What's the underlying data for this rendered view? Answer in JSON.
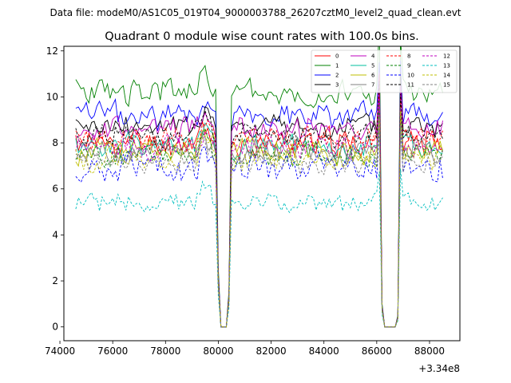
{
  "suptitle": "Data file: modeM0/AS1C05_019T04_9000003788_26207cztM0_level2_quad_clean.evt",
  "chart_data": {
    "type": "line",
    "title": "Quadrant 0 module wise count rates with 100.0s bins.",
    "xlabel": "",
    "ylabel": "",
    "x_offset_label": "+3.34e8",
    "xlim": [
      74150,
      89150
    ],
    "ylim": [
      -0.6,
      12.2
    ],
    "xticks": [
      74000,
      76000,
      78000,
      80000,
      82000,
      84000,
      86000,
      88000
    ],
    "yticks": [
      0,
      2,
      4,
      6,
      8,
      10,
      12
    ],
    "grid": false,
    "legend_position": "top-right",
    "legend_columns": 4,
    "x_start": 74600,
    "bin_width": 100,
    "segments": [
      {
        "from": 74600,
        "to": 79900,
        "type": "data"
      },
      {
        "from": 80000,
        "to": 80400,
        "type": "zero"
      },
      {
        "from": 80500,
        "to": 86100,
        "type": "data"
      },
      {
        "from": 86200,
        "to": 86800,
        "type": "zero"
      },
      {
        "from": 86900,
        "to": 88500,
        "type": "data"
      }
    ],
    "special_points": [
      {
        "x": 79900,
        "factor": 0.6
      },
      {
        "x": 80000,
        "factor": 0.25
      },
      {
        "x": 80400,
        "factor": 0.15
      },
      {
        "x": 80500,
        "factor": 0.6
      },
      {
        "x": 86100,
        "factor": 0.7
      },
      {
        "x": 86200,
        "factor": 0.1
      },
      {
        "x": 86800,
        "factor": 0.05
      },
      {
        "x": 86900,
        "factor": 0.7
      },
      {
        "x": 88400,
        "factor": 0.7
      },
      {
        "x": 88500,
        "factor": 0.16
      }
    ],
    "bump": {
      "from": 79000,
      "to": 79900,
      "peak_x": 79500,
      "amount": 0.8
    },
    "spikes": [
      {
        "x": 86100,
        "factor": 1.25
      },
      {
        "x": 86900,
        "factor": 1.22
      }
    ],
    "series": [
      {
        "name": "0",
        "color": "#ff0000",
        "dash": "solid",
        "mean": 8.0,
        "amplitude": 0.35,
        "seed": 11
      },
      {
        "name": "1",
        "color": "#008000",
        "dash": "solid",
        "mean": 10.2,
        "amplitude": 0.35,
        "seed": 23
      },
      {
        "name": "2",
        "color": "#0000ff",
        "dash": "solid",
        "mean": 9.2,
        "amplitude": 0.35,
        "seed": 37
      },
      {
        "name": "3",
        "color": "#000000",
        "dash": "solid",
        "mean": 8.7,
        "amplitude": 0.3,
        "seed": 41
      },
      {
        "name": "4",
        "color": "#bf00bf",
        "dash": "solid",
        "mean": 8.6,
        "amplitude": 0.3,
        "seed": 53
      },
      {
        "name": "5",
        "color": "#00bf9f",
        "dash": "solid",
        "mean": 7.9,
        "amplitude": 0.3,
        "seed": 67
      },
      {
        "name": "6",
        "color": "#bfbf00",
        "dash": "solid",
        "mean": 7.7,
        "amplitude": 0.3,
        "seed": 71
      },
      {
        "name": "7",
        "color": "#808080",
        "dash": "solid",
        "mean": 7.6,
        "amplitude": 0.3,
        "seed": 83
      },
      {
        "name": "8",
        "color": "#ff0000",
        "dash": "dashed",
        "mean": 8.2,
        "amplitude": 0.3,
        "seed": 97
      },
      {
        "name": "9",
        "color": "#008000",
        "dash": "dashed",
        "mean": 7.5,
        "amplitude": 0.3,
        "seed": 101
      },
      {
        "name": "10",
        "color": "#0000ff",
        "dash": "dashed",
        "mean": 6.9,
        "amplitude": 0.35,
        "seed": 113
      },
      {
        "name": "11",
        "color": "#000000",
        "dash": "dashed",
        "mean": 8.3,
        "amplitude": 0.3,
        "seed": 127
      },
      {
        "name": "12",
        "color": "#bf00bf",
        "dash": "dashed",
        "mean": 7.8,
        "amplitude": 0.3,
        "seed": 131
      },
      {
        "name": "13",
        "color": "#00bfbf",
        "dash": "dashed",
        "mean": 5.4,
        "amplitude": 0.25,
        "seed": 149
      },
      {
        "name": "14",
        "color": "#bfbf00",
        "dash": "dashed",
        "mean": 7.3,
        "amplitude": 0.3,
        "seed": 151
      },
      {
        "name": "15",
        "color": "#808080",
        "dash": "dashed",
        "mean": 7.2,
        "amplitude": 0.3,
        "seed": 163
      }
    ]
  }
}
